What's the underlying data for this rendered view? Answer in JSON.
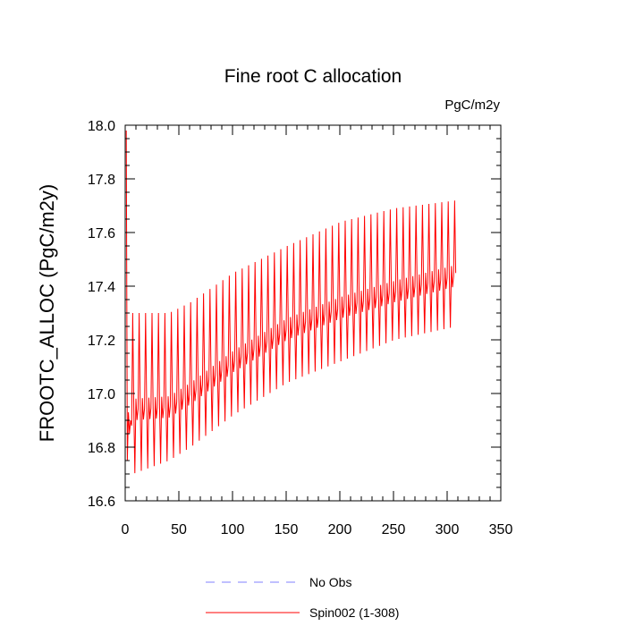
{
  "chart_data": {
    "type": "line",
    "title": "Fine root C allocation",
    "units": "PgC/m2y",
    "ylabel": "FROOTC_ALLOC  (PgC/m2y)",
    "xlabel": "",
    "xlim": [
      0,
      350
    ],
    "ylim": [
      16.6,
      18.0
    ],
    "xticks": [
      0,
      50,
      100,
      150,
      200,
      250,
      300,
      350
    ],
    "xtick_labels": [
      "0",
      "50",
      "100",
      "150",
      "200",
      "250",
      "300",
      "350"
    ],
    "yticks": [
      16.6,
      16.8,
      17.0,
      17.2,
      17.4,
      17.6,
      17.8,
      18.0
    ],
    "ytick_labels": [
      "16.6",
      "16.8",
      "17.0",
      "17.2",
      "17.4",
      "17.6",
      "17.8",
      "18.0"
    ],
    "series": [
      {
        "name": "Spin002 (1-308)",
        "color": "#ff0000",
        "style": "solid",
        "n_points": 308,
        "period": 6,
        "initial_values": [
          17.98,
          16.75,
          16.93,
          16.85,
          16.9,
          16.88
        ],
        "peak_envelope": [
          [
            6,
            17.3
          ],
          [
            40,
            17.3
          ],
          [
            60,
            17.34
          ],
          [
            100,
            17.45
          ],
          [
            150,
            17.55
          ],
          [
            200,
            17.64
          ],
          [
            250,
            17.69
          ],
          [
            308,
            17.72
          ]
        ],
        "trough_envelope": [
          [
            6,
            16.7
          ],
          [
            40,
            16.75
          ],
          [
            60,
            16.8
          ],
          [
            100,
            16.92
          ],
          [
            150,
            17.04
          ],
          [
            200,
            17.12
          ],
          [
            250,
            17.2
          ],
          [
            308,
            17.25
          ]
        ],
        "mid_envelope": [
          [
            6,
            16.92
          ],
          [
            40,
            16.93
          ],
          [
            60,
            16.98
          ],
          [
            100,
            17.1
          ],
          [
            150,
            17.22
          ],
          [
            200,
            17.3
          ],
          [
            250,
            17.36
          ],
          [
            308,
            17.42
          ]
        ]
      },
      {
        "name": "No Obs",
        "color": "#8080ff",
        "style": "dashed",
        "values": []
      }
    ],
    "legend": [
      {
        "label": "No Obs",
        "color": "#8080ff",
        "style": "dashed"
      },
      {
        "label": "Spin002 (1-308)",
        "color": "#ff0000",
        "style": "solid"
      }
    ]
  }
}
